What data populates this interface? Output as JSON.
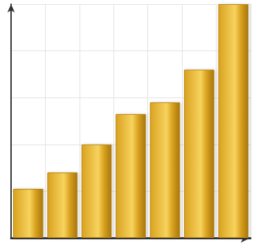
{
  "chart_data": {
    "type": "bar",
    "categories": [
      null,
      null,
      null,
      null,
      null,
      null,
      null
    ],
    "values": [
      21,
      28,
      40,
      53,
      58,
      72,
      100
    ],
    "color": "#d9a21f",
    "ylim": [
      0,
      100
    ],
    "yticks": [
      0,
      20,
      40,
      60,
      80,
      100
    ],
    "grid": true,
    "tick_labels": false
  }
}
